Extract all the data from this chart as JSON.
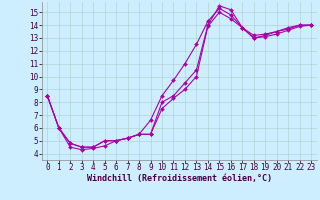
{
  "title": "",
  "xlabel": "Windchill (Refroidissement éolien,°C)",
  "ylabel": "",
  "background_color": "#cceeff",
  "line_color": "#aa00aa",
  "grid_color": "#aacccc",
  "xlim": [
    -0.5,
    23.5
  ],
  "ylim": [
    3.5,
    15.8
  ],
  "xticks": [
    0,
    1,
    2,
    3,
    4,
    5,
    6,
    7,
    8,
    9,
    10,
    11,
    12,
    13,
    14,
    15,
    16,
    17,
    18,
    19,
    20,
    21,
    22,
    23
  ],
  "yticks": [
    4,
    5,
    6,
    7,
    8,
    9,
    10,
    11,
    12,
    13,
    14,
    15
  ],
  "line1_x": [
    0,
    1,
    2,
    3,
    4,
    5,
    6,
    7,
    8,
    9,
    10,
    11,
    12,
    13,
    14,
    15,
    16,
    17,
    18,
    19,
    20,
    21,
    22,
    23
  ],
  "line1_y": [
    8.5,
    6.0,
    4.8,
    4.5,
    4.5,
    5.0,
    5.0,
    5.2,
    5.5,
    6.6,
    8.5,
    9.7,
    11.0,
    12.5,
    14.3,
    15.3,
    14.8,
    13.8,
    13.0,
    13.2,
    13.5,
    13.8,
    14.0,
    14.0
  ],
  "line2_x": [
    0,
    1,
    2,
    3,
    4,
    5,
    6,
    7,
    8,
    9,
    10,
    11,
    12,
    13,
    14,
    15,
    16,
    17,
    18,
    19,
    20,
    21,
    22,
    23
  ],
  "line2_y": [
    8.5,
    6.0,
    4.8,
    4.5,
    4.5,
    5.0,
    5.0,
    5.2,
    5.5,
    5.5,
    8.0,
    8.5,
    9.5,
    10.5,
    14.0,
    15.5,
    15.2,
    13.8,
    13.2,
    13.3,
    13.5,
    13.7,
    14.0,
    14.0
  ],
  "line3_x": [
    0,
    1,
    2,
    3,
    4,
    5,
    6,
    7,
    8,
    9,
    10,
    11,
    12,
    13,
    14,
    15,
    16,
    17,
    18,
    19,
    20,
    21,
    22,
    23
  ],
  "line3_y": [
    8.5,
    6.0,
    4.5,
    4.3,
    4.4,
    4.6,
    5.0,
    5.2,
    5.5,
    5.5,
    7.5,
    8.3,
    9.0,
    10.0,
    13.9,
    15.0,
    14.5,
    13.8,
    13.0,
    13.1,
    13.3,
    13.6,
    13.9,
    14.0
  ],
  "marker": "D",
  "markersize": 2.0,
  "linewidth": 0.8,
  "xlabel_fontsize": 6,
  "tick_fontsize": 5.5
}
